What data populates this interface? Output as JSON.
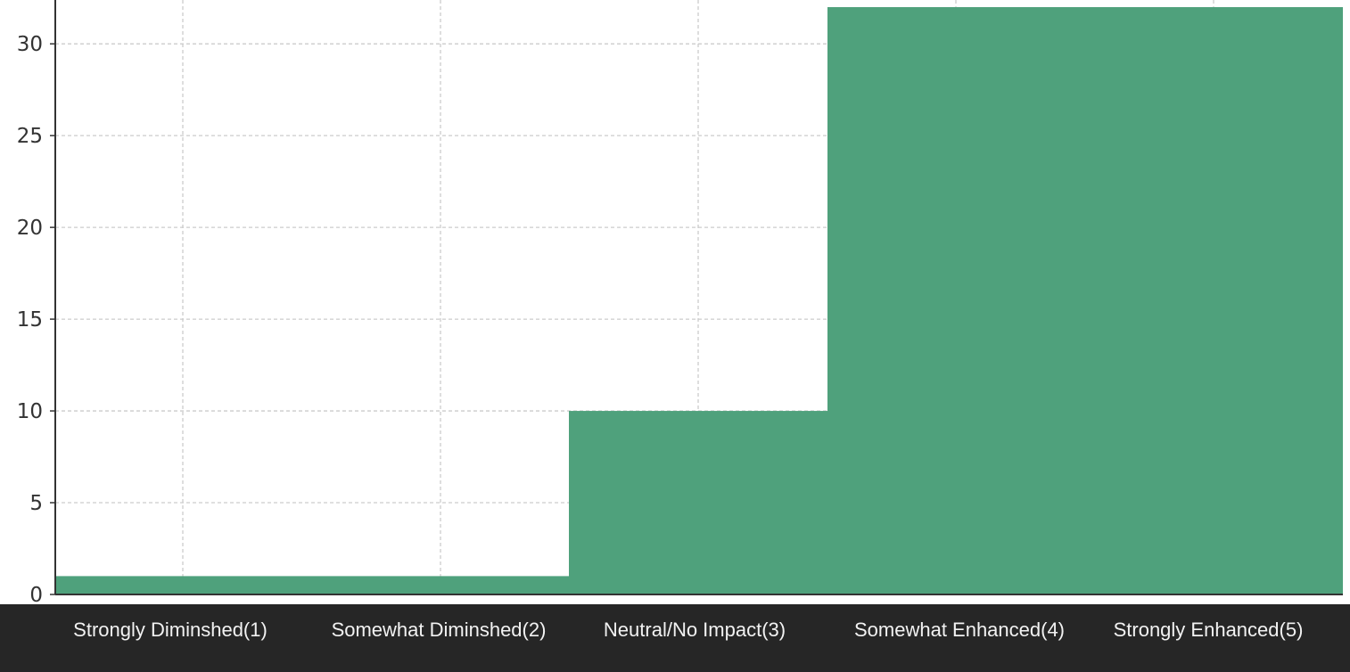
{
  "chart_data": {
    "type": "area",
    "step": "mid",
    "categories": [
      "Strongly Diminshed(1)",
      "Somewhat Diminshed(2)",
      "Neutral/No Impact(3)",
      "Somewhat Enhanced(4)",
      "Strongly Enhanced(5)"
    ],
    "values": [
      1,
      1,
      10,
      32,
      32
    ],
    "yticks": [
      0,
      5,
      10,
      15,
      20,
      25,
      30
    ],
    "ylim": [
      0,
      32
    ],
    "grid": true,
    "colors": {
      "fill": "#4fa17c",
      "grid": "#cccccc",
      "axis": "#333333",
      "label_bar": "#262626",
      "label_text": "#f2f2f2"
    }
  }
}
